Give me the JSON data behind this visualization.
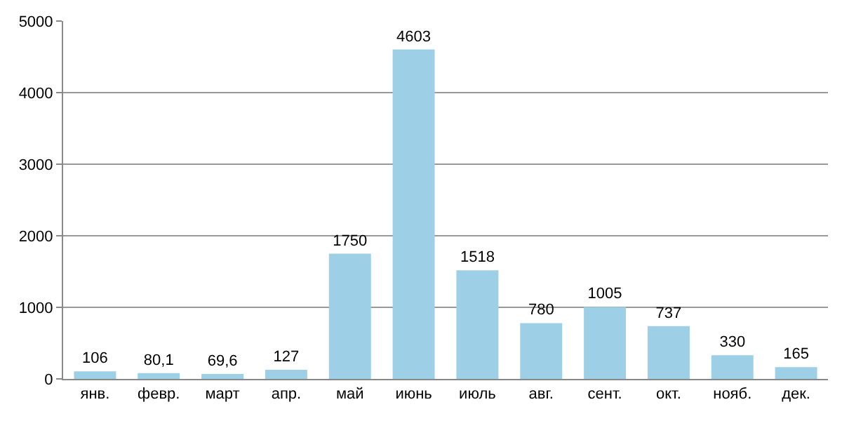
{
  "chart_data": {
    "type": "bar",
    "categories": [
      "янв.",
      "февр.",
      "март",
      "апр.",
      "май",
      "июнь",
      "июль",
      "авг.",
      "сент.",
      "окт.",
      "нояб.",
      "дек."
    ],
    "values": [
      106,
      80.1,
      69.6,
      127,
      1750,
      4603,
      1518,
      780,
      1005,
      737,
      330,
      165
    ],
    "value_labels": [
      "106",
      "80,1",
      "69,6",
      "127",
      "1750",
      "4603",
      "1518",
      "780",
      "1005",
      "737",
      "330",
      "165"
    ],
    "color": "#9dd0e6",
    "ylim": [
      0,
      5000
    ],
    "yticks": [
      0,
      1000,
      2000,
      3000,
      4000,
      5000
    ],
    "grid": "y"
  }
}
